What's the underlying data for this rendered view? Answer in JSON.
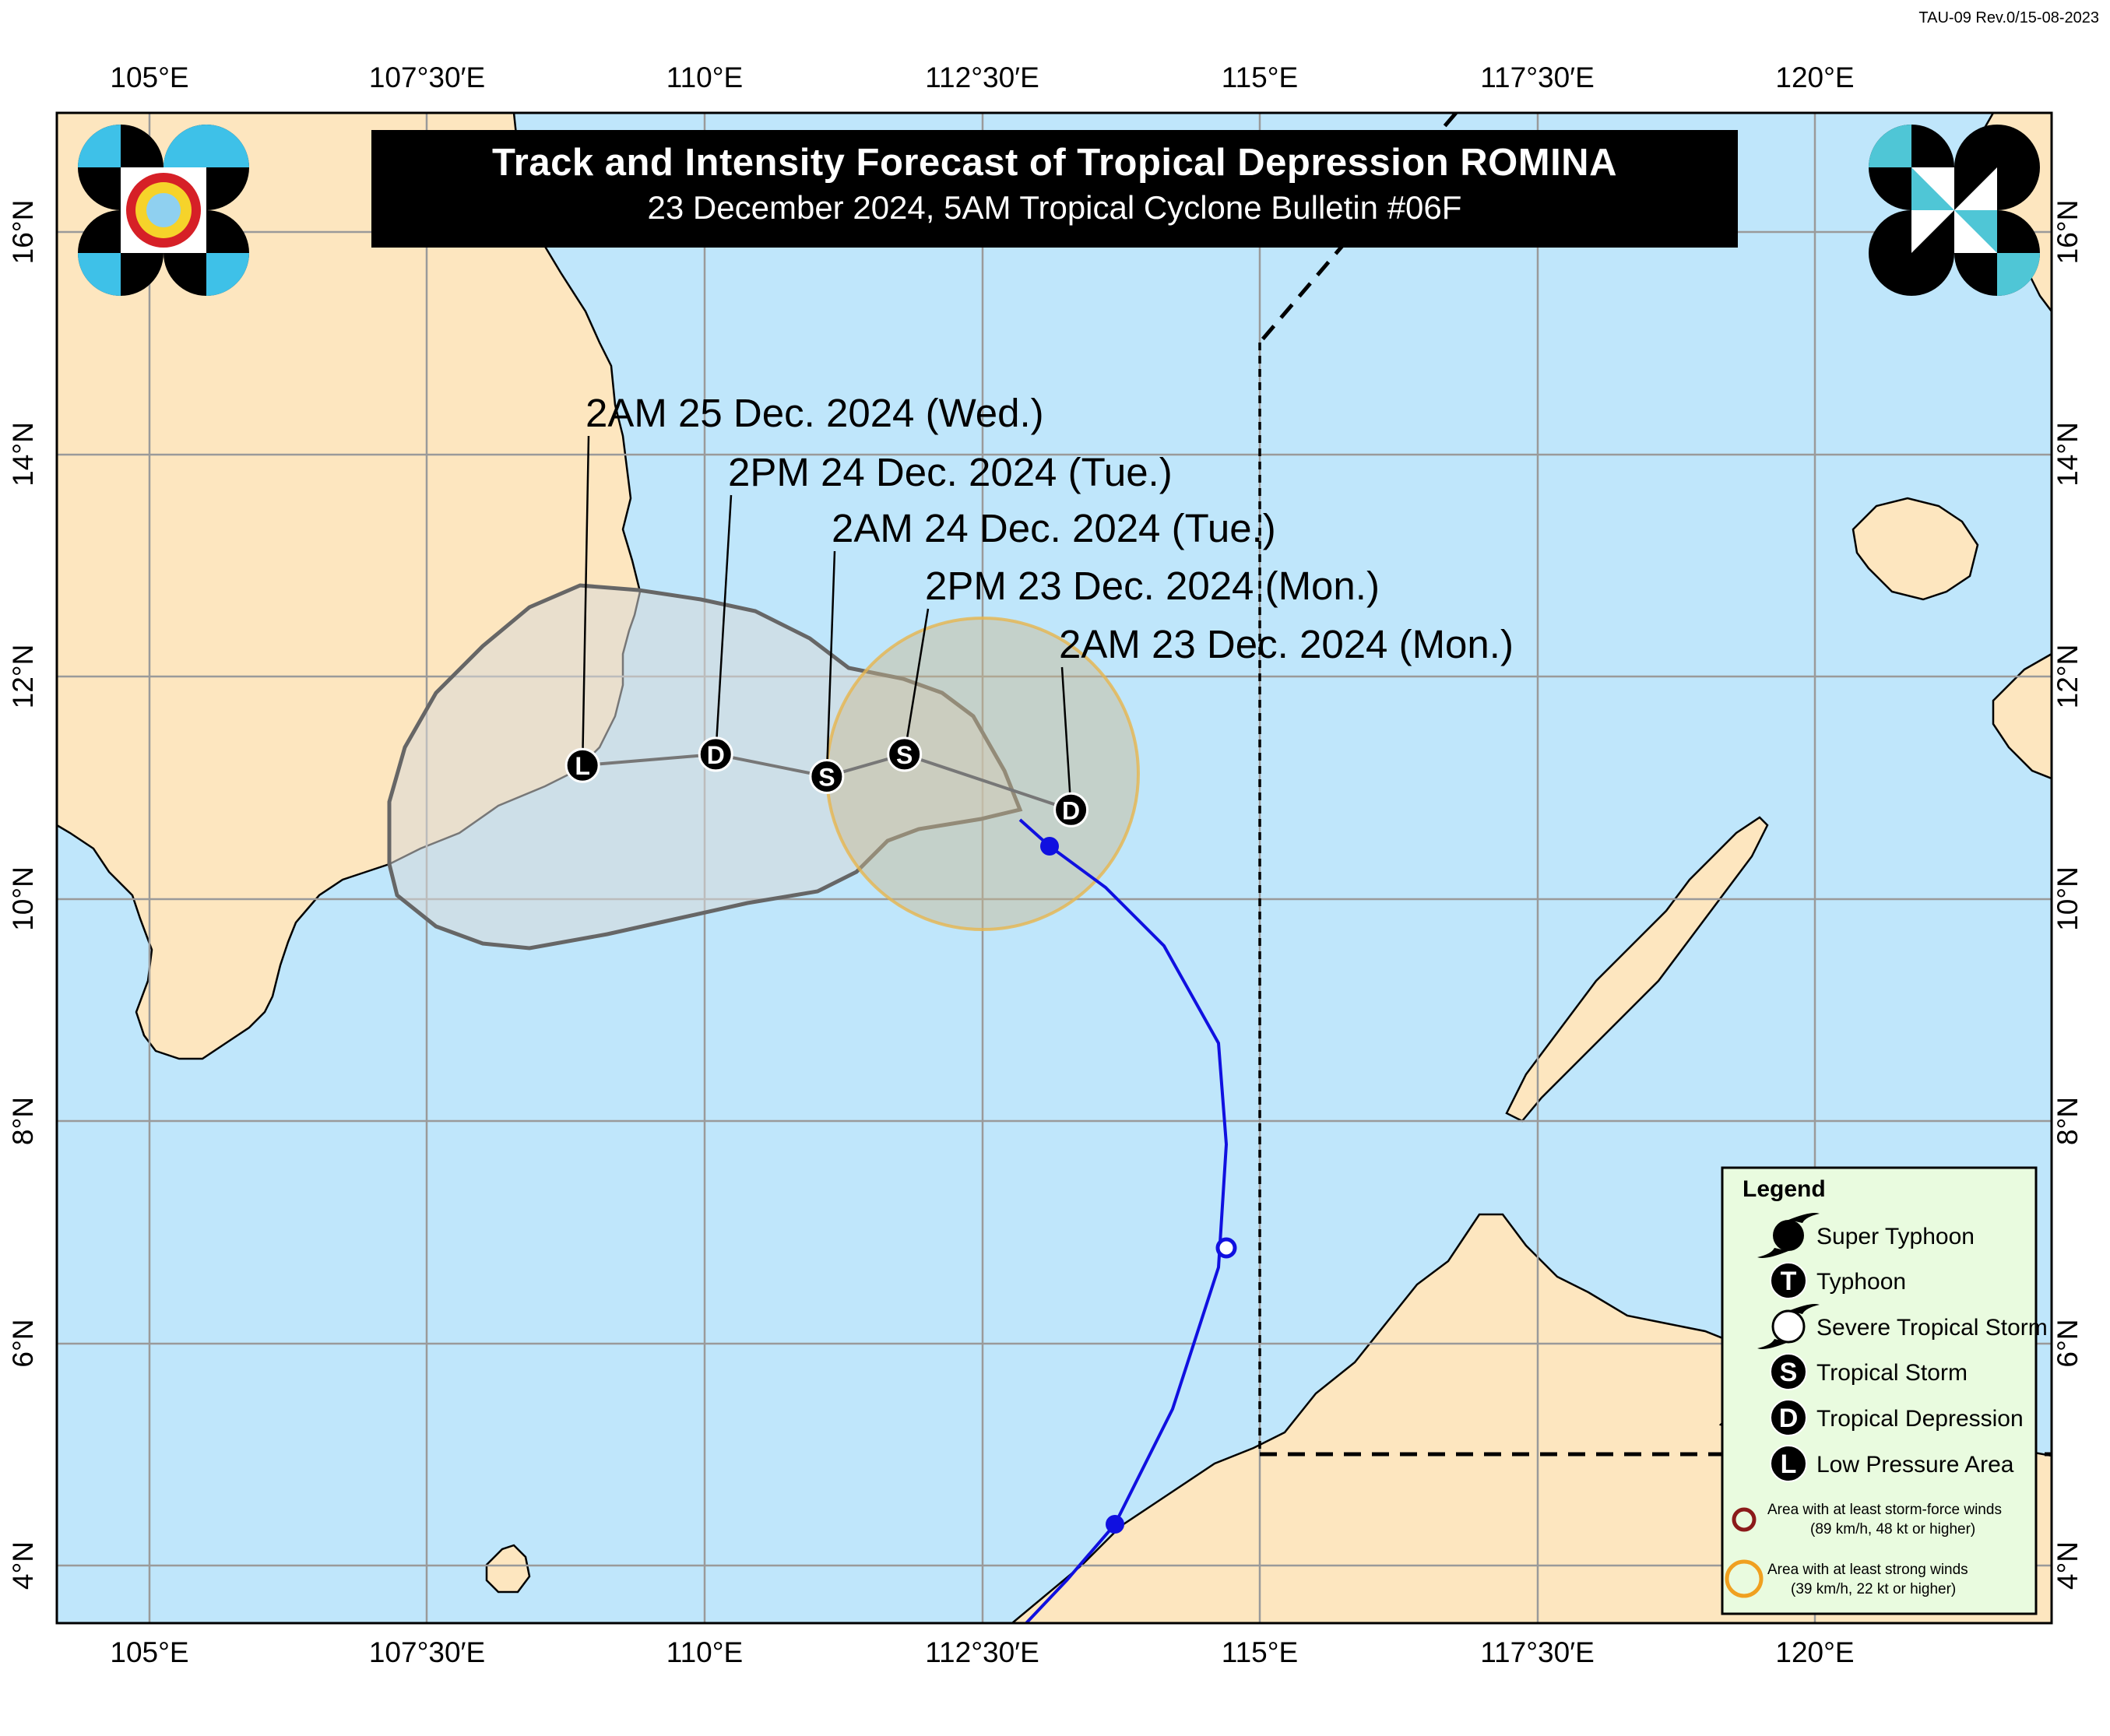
{
  "revision": "TAU-09 Rev.0/15-08-2023",
  "title": "Track and Intensity Forecast of Tropical Depression ROMINA",
  "subtitle": "23 December 2024, 5AM Tropical Cyclone Bulletin #06F",
  "longitude_labels": [
    "105°E",
    "107°30′E",
    "110°E",
    "112°30′E",
    "115°E",
    "117°30′E",
    "120°E"
  ],
  "latitude_labels": [
    "16°N",
    "14°N",
    "12°N",
    "10°N",
    "8°N",
    "6°N",
    "4°N"
  ],
  "map": {
    "lon_range": [
      104.2,
      122.2
    ],
    "lat_range": [
      3.5,
      17.6
    ],
    "colors": {
      "sea": "#bfe6fb",
      "land": "#fde6bf",
      "track_past": "#1010e0",
      "cone": "#d8d8d8",
      "wind_circle": "#e7b54e"
    }
  },
  "forecast_points": [
    {
      "label": "2AM 23 Dec. 2024 (Mon.)",
      "symbol": "D",
      "lon": 113.3,
      "lat": 10.8
    },
    {
      "label": "2PM 23 Dec. 2024 (Mon.)",
      "symbol": "S",
      "lon": 111.8,
      "lat": 11.3
    },
    {
      "label": "2AM 24 Dec. 2024 (Tue.)",
      "symbol": "S",
      "lon": 111.1,
      "lat": 11.1
    },
    {
      "label": "2PM 24 Dec. 2024 (Tue.)",
      "symbol": "D",
      "lon": 110.1,
      "lat": 11.3
    },
    {
      "label": "2AM 25 Dec. 2024 (Wed.)",
      "symbol": "L",
      "lon": 108.9,
      "lat": 11.2
    }
  ],
  "legend": {
    "title": "Legend",
    "items": [
      {
        "icon": "super-typhoon-icon",
        "letter": "",
        "label": "Super Typhoon"
      },
      {
        "icon": "typhoon-icon",
        "letter": "T",
        "label": "Typhoon"
      },
      {
        "icon": "severe-tropical-storm-icon",
        "letter": "",
        "label": "Severe Tropical Storm"
      },
      {
        "icon": "tropical-storm-icon",
        "letter": "S",
        "label": "Tropical Storm"
      },
      {
        "icon": "tropical-depression-icon",
        "letter": "D",
        "label": "Tropical Depression"
      },
      {
        "icon": "low-pressure-area-icon",
        "letter": "L",
        "label": "Low Pressure Area"
      }
    ],
    "storm_force": {
      "line1": "Area with at least storm-force winds",
      "line2": "(89 km/h, 48 kt or higher)",
      "color": "#8b1a1a"
    },
    "strong_winds": {
      "line1": "Area with at least strong winds",
      "line2": "(39 km/h, 22 kt or higher)",
      "color": "#f0a020"
    }
  }
}
